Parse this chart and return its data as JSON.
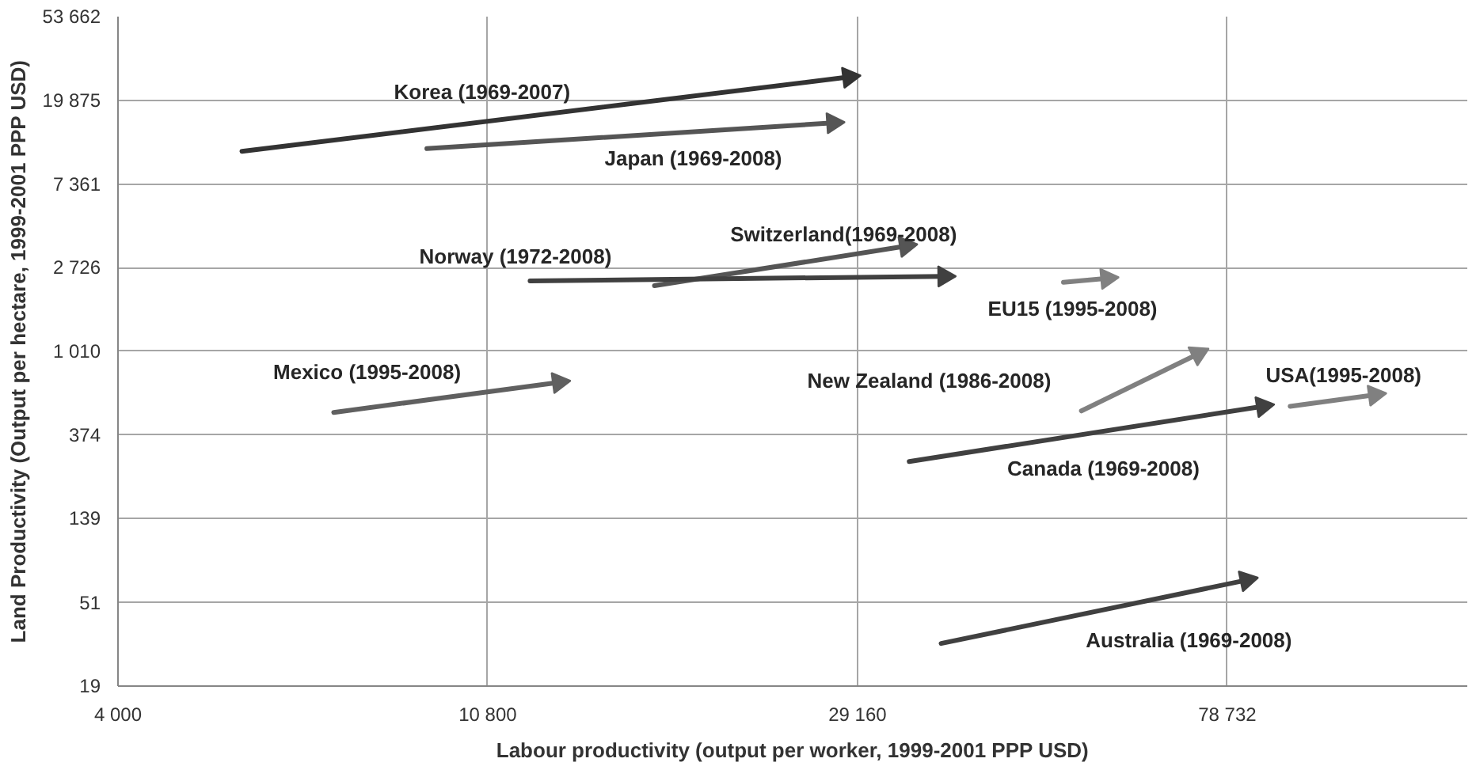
{
  "chart_data": {
    "type": "line",
    "xlabel": "Labour productivity (output per worker, 1999-2001 PPP USD)",
    "ylabel": "Land Productivity (Output per hectare, 1999-2001 PPP USD)",
    "log": "xy",
    "grid": true,
    "xlim": [
      4000,
      150000
    ],
    "xticks": [
      {
        "value": 4000,
        "label": "4 000"
      },
      {
        "value": 10800,
        "label": "10 800"
      },
      {
        "value": 29160,
        "label": "29 160"
      },
      {
        "value": 78732,
        "label": "78 732"
      }
    ],
    "ylim": [
      19,
      53662
    ],
    "yticks": [
      19,
      51,
      139,
      374,
      {
        "value": 1010,
        "label": "1 010"
      },
      {
        "value": 2726,
        "label": "2 726"
      },
      {
        "value": 7361,
        "label": "7 361"
      },
      {
        "value": 19875,
        "label": "19 875"
      },
      {
        "value": 53662,
        "label": "53 662"
      }
    ],
    "series": [
      {
        "name": "Korea (1969-2007)",
        "color": "#333333",
        "x": [
          5580,
          28500
        ],
        "values": [
          10850,
          26200
        ]
      },
      {
        "name": "Japan (1969-2008)",
        "color": "#555555",
        "x": [
          9170,
          27300
        ],
        "values": [
          11200,
          15200
        ]
      },
      {
        "name": "Switzerland(1969-2008)",
        "color": "#555555",
        "x": [
          16900,
          33200
        ],
        "values": [
          2200,
          3520
        ]
      },
      {
        "name": "Norway (1972-2008)",
        "color": "#404040",
        "x": [
          12100,
          36800
        ],
        "values": [
          2330,
          2460
        ]
      },
      {
        "name": "EU15 (1995-2008)",
        "color": "#808080",
        "x": [
          50700,
          57000
        ],
        "values": [
          2290,
          2400
        ]
      },
      {
        "name": "New Zealand (1986-2008)",
        "color": "#808080",
        "x": [
          53200,
          72800
        ],
        "values": [
          498,
          980
        ]
      },
      {
        "name": "USA(1995-2008)",
        "color": "#808080",
        "x": [
          93200,
          117000
        ],
        "values": [
          526,
          602
        ]
      },
      {
        "name": "Canada (1969-2008)",
        "color": "#404040",
        "x": [
          33500,
          86600
        ],
        "values": [
          273,
          526
        ]
      },
      {
        "name": "Mexico (1995-2008)",
        "color": "#606060",
        "x": [
          7140,
          13070
        ],
        "values": [
          489,
          699
        ]
      },
      {
        "name": "Australia (1969-2008)",
        "color": "#404040",
        "x": [
          36500,
          82900
        ],
        "values": [
          31.5,
          66.8
        ]
      }
    ]
  }
}
